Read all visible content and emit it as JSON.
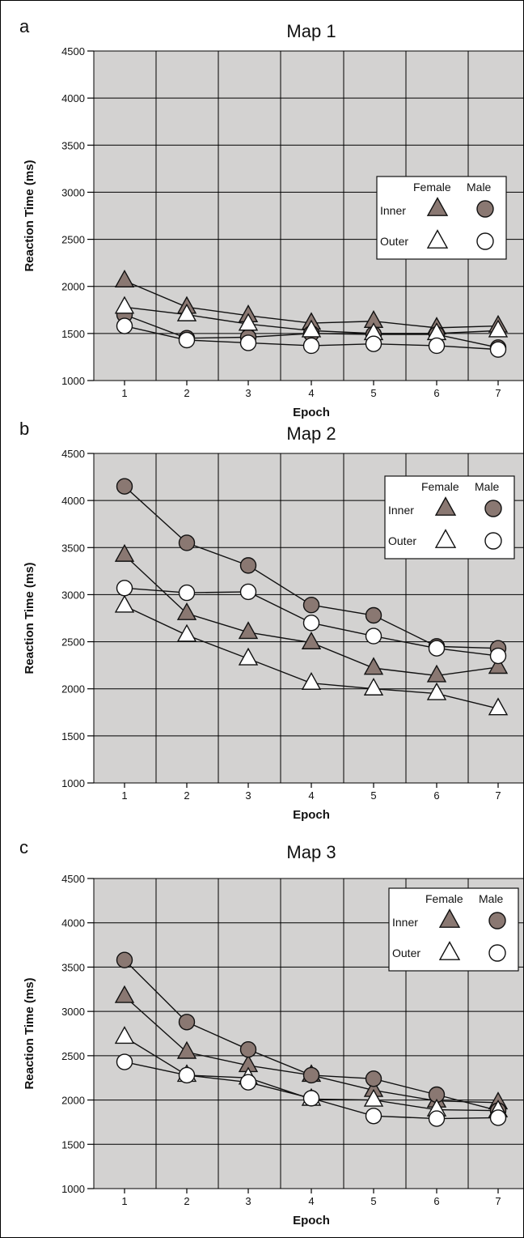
{
  "colors": {
    "plot_background": "#d3d2d1",
    "grid": "#000000",
    "inner_marker": "#8a7872",
    "outer_marker": "#ffffff",
    "line": "#111111"
  },
  "legend": {
    "female_label": "Female",
    "male_label": "Male",
    "inner_label": "Inner",
    "outer_label": "Outer"
  },
  "chart_data": [
    {
      "panel": "a",
      "type": "line",
      "title": "Map 1",
      "xlabel": "Epoch",
      "ylabel": "Reaction Time (ms)",
      "x": [
        1,
        2,
        3,
        4,
        5,
        6,
        7
      ],
      "ylim": [
        1000,
        4500
      ],
      "yticks": [
        1000,
        1500,
        2000,
        2500,
        3000,
        3500,
        4000,
        4500
      ],
      "grid": true,
      "legend_position": "right",
      "series": [
        {
          "group": "Inner",
          "sex": "Female",
          "marker": "triangle",
          "values": [
            2060,
            1780,
            1690,
            1610,
            1630,
            1560,
            1580
          ]
        },
        {
          "group": "Inner",
          "sex": "Male",
          "marker": "circle",
          "values": [
            1700,
            1450,
            1460,
            1500,
            1490,
            1490,
            1350
          ]
        },
        {
          "group": "Outer",
          "sex": "Female",
          "marker": "triangle",
          "values": [
            1780,
            1700,
            1600,
            1530,
            1500,
            1500,
            1530
          ]
        },
        {
          "group": "Outer",
          "sex": "Male",
          "marker": "circle",
          "values": [
            1580,
            1430,
            1400,
            1370,
            1390,
            1370,
            1330
          ]
        }
      ]
    },
    {
      "panel": "b",
      "type": "line",
      "title": "Map 2",
      "xlabel": "Epoch",
      "ylabel": "Reaction Time (ms)",
      "x": [
        1,
        2,
        3,
        4,
        5,
        6,
        7
      ],
      "ylim": [
        1000,
        4500
      ],
      "yticks": [
        1000,
        1500,
        2000,
        2500,
        3000,
        3500,
        4000,
        4500
      ],
      "grid": true,
      "legend_position": "right",
      "series": [
        {
          "group": "Inner",
          "sex": "Female",
          "marker": "triangle",
          "values": [
            3420,
            2800,
            2600,
            2490,
            2220,
            2140,
            2230
          ]
        },
        {
          "group": "Inner",
          "sex": "Male",
          "marker": "circle",
          "values": [
            4150,
            3550,
            3310,
            2890,
            2780,
            2450,
            2430
          ]
        },
        {
          "group": "Outer",
          "sex": "Female",
          "marker": "triangle",
          "values": [
            2880,
            2570,
            2320,
            2060,
            2000,
            1950,
            1790
          ]
        },
        {
          "group": "Outer",
          "sex": "Male",
          "marker": "circle",
          "values": [
            3070,
            3020,
            3030,
            2700,
            2560,
            2430,
            2350
          ]
        }
      ]
    },
    {
      "panel": "c",
      "type": "line",
      "title": "Map 3",
      "xlabel": "Epoch",
      "ylabel": "Reaction Time (ms)",
      "x": [
        1,
        2,
        3,
        4,
        5,
        6,
        7
      ],
      "ylim": [
        1000,
        4500
      ],
      "yticks": [
        1000,
        1500,
        2000,
        2500,
        3000,
        3500,
        4000,
        4500
      ],
      "grid": true,
      "legend_position": "right",
      "series": [
        {
          "group": "Inner",
          "sex": "Female",
          "marker": "triangle",
          "values": [
            3170,
            2540,
            2390,
            2280,
            2110,
            1990,
            1970
          ]
        },
        {
          "group": "Inner",
          "sex": "Male",
          "marker": "circle",
          "values": [
            3580,
            2880,
            2570,
            2280,
            2240,
            2060,
            1880
          ]
        },
        {
          "group": "Outer",
          "sex": "Female",
          "marker": "triangle",
          "values": [
            2710,
            2280,
            2250,
            2010,
            2000,
            1890,
            1880
          ]
        },
        {
          "group": "Outer",
          "sex": "Male",
          "marker": "circle",
          "values": [
            2430,
            2280,
            2200,
            2020,
            1820,
            1790,
            1800
          ]
        }
      ]
    }
  ]
}
